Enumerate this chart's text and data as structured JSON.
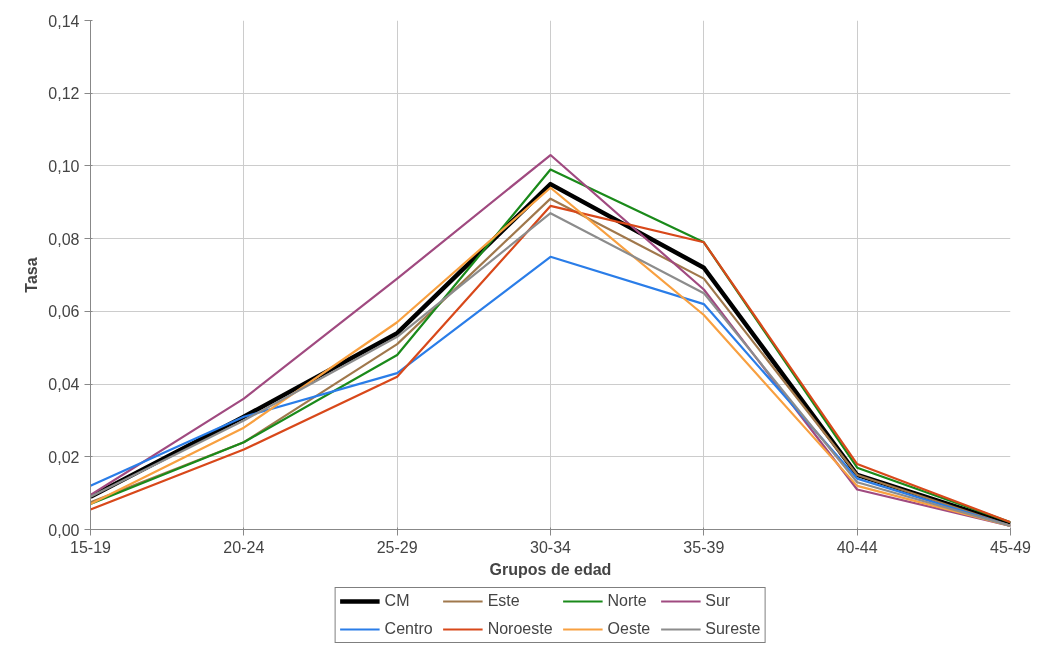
{
  "chart_data": {
    "type": "line",
    "xlabel": "Grupos de edad",
    "ylabel": "Tasa",
    "categories": [
      "15-19",
      "20-24",
      "25-29",
      "30-34",
      "35-39",
      "40-44",
      "45-49"
    ],
    "ylim": [
      0,
      0.14
    ],
    "yticks": [
      {
        "value": 0,
        "label": "0,00"
      },
      {
        "value": 0.02,
        "label": "0,02"
      },
      {
        "value": 0.04,
        "label": "0,04"
      },
      {
        "value": 0.06,
        "label": "0,06"
      },
      {
        "value": 0.08,
        "label": "0,08"
      },
      {
        "value": 0.1,
        "label": "0,10"
      },
      {
        "value": 0.12,
        "label": "0,12"
      },
      {
        "value": 0.14,
        "label": "0,14"
      }
    ],
    "grid": true,
    "legend": "bottom",
    "marker": "none",
    "line_style": "solid",
    "series": [
      {
        "name": "CM",
        "color": "#000000",
        "values": [
          0.009,
          0.031,
          0.054,
          0.095,
          0.072,
          0.015,
          0.0015
        ]
      },
      {
        "name": "Este",
        "color": "#a0784c",
        "values": [
          0.0075,
          0.024,
          0.051,
          0.091,
          0.069,
          0.015,
          0.001
        ]
      },
      {
        "name": "Norte",
        "color": "#1a8a1a",
        "values": [
          0.007,
          0.024,
          0.048,
          0.099,
          0.079,
          0.017,
          0.002
        ]
      },
      {
        "name": "Sur",
        "color": "#a04a80",
        "values": [
          0.0095,
          0.036,
          0.069,
          0.103,
          0.066,
          0.011,
          0.001
        ]
      },
      {
        "name": "Centro",
        "color": "#2a7de8",
        "values": [
          0.012,
          0.031,
          0.043,
          0.075,
          0.062,
          0.014,
          0.001
        ]
      },
      {
        "name": "Noroeste",
        "color": "#d8481a",
        "values": [
          0.0055,
          0.022,
          0.042,
          0.089,
          0.079,
          0.018,
          0.002
        ]
      },
      {
        "name": "Oeste",
        "color": "#f8a040",
        "values": [
          0.007,
          0.028,
          0.057,
          0.094,
          0.059,
          0.012,
          0.001
        ]
      },
      {
        "name": "Sureste",
        "color": "#8c8c8c",
        "values": [
          0.009,
          0.03,
          0.053,
          0.087,
          0.065,
          0.013,
          0.001
        ]
      }
    ]
  }
}
